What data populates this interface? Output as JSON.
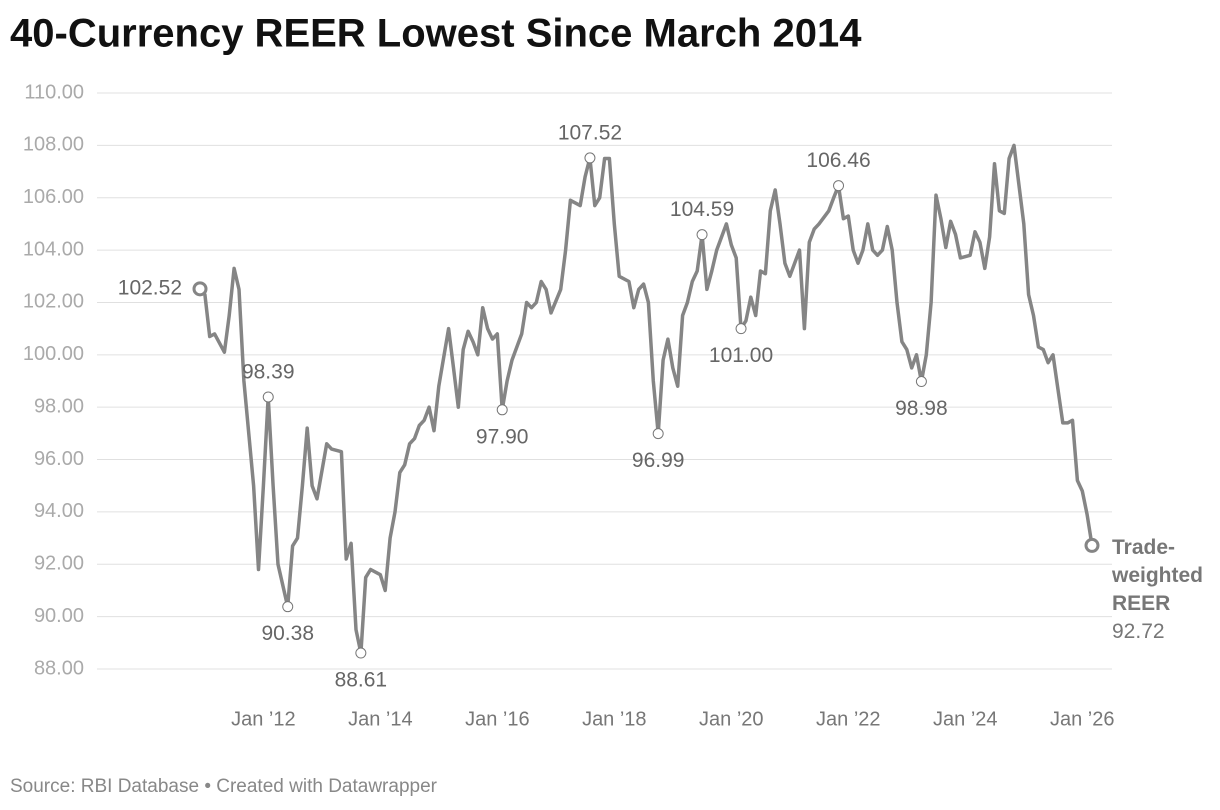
{
  "chart_data": {
    "type": "line",
    "title": "40-Currency REER Lowest Since March 2014",
    "source": "Source: RBI Database • Created with Datawrapper",
    "x": [
      "2010-12",
      "2011-01",
      "2011-02",
      "2011-03",
      "2011-05",
      "2011-06",
      "2011-07",
      "2011-08",
      "2011-09",
      "2011-11",
      "2011-12",
      "2012-01",
      "2012-02",
      "2012-03",
      "2012-04",
      "2012-06",
      "2012-07",
      "2012-08",
      "2012-09",
      "2012-10",
      "2012-11",
      "2012-12",
      "2013-02",
      "2013-03",
      "2013-05",
      "2013-06",
      "2013-07",
      "2013-08",
      "2013-09",
      "2013-10",
      "2013-11",
      "2014-01",
      "2014-02",
      "2014-03",
      "2014-04",
      "2014-05",
      "2014-06",
      "2014-07",
      "2014-08",
      "2014-09",
      "2014-10",
      "2014-11",
      "2014-12",
      "2015-01",
      "2015-03",
      "2015-04",
      "2015-05",
      "2015-06",
      "2015-07",
      "2015-08",
      "2015-09",
      "2015-10",
      "2015-11",
      "2015-12",
      "2016-01",
      "2016-02",
      "2016-03",
      "2016-04",
      "2016-06",
      "2016-07",
      "2016-08",
      "2016-09",
      "2016-10",
      "2016-11",
      "2016-12",
      "2017-02",
      "2017-03",
      "2017-04",
      "2017-06",
      "2017-07",
      "2017-08",
      "2017-09",
      "2017-10",
      "2017-11",
      "2017-12",
      "2018-01",
      "2018-02",
      "2018-04",
      "2018-05",
      "2018-06",
      "2018-07",
      "2018-08",
      "2018-09",
      "2018-10",
      "2018-11",
      "2018-12",
      "2019-01",
      "2019-02",
      "2019-03",
      "2019-04",
      "2019-05",
      "2019-06",
      "2019-07",
      "2019-08",
      "2019-09",
      "2019-10",
      "2019-12",
      "2020-01",
      "2020-02",
      "2020-03",
      "2020-04",
      "2020-05",
      "2020-06",
      "2020-07",
      "2020-08",
      "2020-09",
      "2020-10",
      "2020-11",
      "2020-12",
      "2021-01",
      "2021-03",
      "2021-04",
      "2021-05",
      "2021-06",
      "2021-07",
      "2021-09",
      "2021-10",
      "2021-11",
      "2021-12",
      "2022-01",
      "2022-02",
      "2022-03",
      "2022-04",
      "2022-05",
      "2022-06",
      "2022-07",
      "2022-08",
      "2022-09",
      "2022-10",
      "2022-11",
      "2022-12",
      "2023-01",
      "2023-02",
      "2023-03",
      "2023-04",
      "2023-05",
      "2023-06",
      "2023-07",
      "2023-08",
      "2023-09",
      "2023-10",
      "2023-11",
      "2023-12",
      "2024-02",
      "2024-03",
      "2024-04",
      "2024-05",
      "2024-06",
      "2024-07",
      "2024-08",
      "2024-09",
      "2024-10",
      "2024-11",
      "2024-12",
      "2025-01",
      "2025-02",
      "2025-03",
      "2025-04",
      "2025-05",
      "2025-06",
      "2025-07",
      "2025-08",
      "2025-09",
      "2025-10",
      "2025-11",
      "2025-12",
      "2026-01",
      "2026-02",
      "2026-03"
    ],
    "series": [
      {
        "name": "Trade-weighted REER",
        "color": "#858585",
        "values": [
          102.52,
          102.3,
          100.7,
          100.8,
          100.1,
          101.5,
          103.3,
          102.5,
          99,
          95,
          91.8,
          95,
          98.39,
          95,
          92,
          90.38,
          92.7,
          93,
          95,
          97.2,
          95,
          94.5,
          96.6,
          96.4,
          96.3,
          92.2,
          92.8,
          89.5,
          88.61,
          91.5,
          91.8,
          91.6,
          91,
          93,
          94,
          95.5,
          95.8,
          96.6,
          96.8,
          97.3,
          97.5,
          98,
          97.1,
          98.8,
          101,
          99.5,
          98,
          100.2,
          100.9,
          100.5,
          100,
          101.8,
          101,
          100.6,
          100.8,
          97.9,
          99,
          99.8,
          100.8,
          102,
          101.8,
          102,
          102.8,
          102.5,
          101.6,
          102.5,
          104,
          105.9,
          105.7,
          106.8,
          107.52,
          105.7,
          106,
          107.5,
          107.5,
          105,
          103,
          102.8,
          101.8,
          102.5,
          102.7,
          102,
          99,
          96.99,
          99.8,
          100.6,
          99.5,
          98.8,
          101.5,
          102,
          102.8,
          103.2,
          104.59,
          102.5,
          103.2,
          104,
          105,
          104.2,
          103.7,
          101,
          101.3,
          102.2,
          101.5,
          103.2,
          103.1,
          105.5,
          106.3,
          105,
          103.5,
          103,
          104,
          101,
          104.3,
          104.8,
          105,
          105.5,
          106,
          106.46,
          105.2,
          105.3,
          104,
          103.5,
          104,
          105,
          104,
          103.8,
          104,
          104.9,
          104,
          102,
          100.5,
          100.2,
          99.5,
          100,
          98.98,
          100,
          102,
          106.1,
          105.2,
          104.1,
          105.1,
          104.6,
          103.7,
          103.8,
          104.7,
          104.3,
          103.3,
          104.5,
          107.3,
          105.5,
          105.4,
          107.5,
          108,
          106.5,
          105,
          102.3,
          101.5,
          100.3,
          100.2,
          99.7,
          100,
          98.7,
          97.4,
          97.4,
          97.5,
          95.2,
          94.8,
          93.9,
          92.72
        ],
        "value_labels": [
          "102.52",
          null,
          null,
          null,
          null,
          null,
          null,
          null,
          null,
          null,
          null,
          null,
          "98.39",
          null,
          null,
          "90.38",
          null,
          null,
          null,
          null,
          null,
          null,
          null,
          null,
          null,
          null,
          null,
          null,
          "88.61",
          null,
          null,
          null,
          null,
          null,
          null,
          null,
          null,
          null,
          null,
          null,
          null,
          null,
          null,
          null,
          null,
          null,
          null,
          null,
          null,
          null,
          null,
          null,
          null,
          null,
          null,
          "97.90",
          null,
          null,
          null,
          null,
          null,
          null,
          null,
          null,
          null,
          null,
          null,
          null,
          null,
          null,
          "107.52",
          null,
          null,
          null,
          null,
          null,
          null,
          null,
          null,
          null,
          null,
          null,
          null,
          "96.99",
          null,
          null,
          null,
          null,
          null,
          null,
          null,
          null,
          "104.59",
          null,
          null,
          null,
          null,
          null,
          null,
          "101.00",
          null,
          null,
          null,
          null,
          null,
          null,
          null,
          null,
          null,
          null,
          null,
          null,
          null,
          null,
          null,
          null,
          null,
          "106.46",
          null,
          null,
          null,
          null,
          null,
          null,
          null,
          null,
          null,
          null,
          null,
          null,
          null,
          null,
          null,
          null,
          "98.98",
          null,
          null,
          null,
          null,
          null,
          null,
          null,
          null,
          null,
          null,
          null,
          null,
          null,
          null,
          null,
          null,
          null,
          null,
          null,
          null,
          null,
          null,
          null,
          null,
          null,
          null,
          null,
          null,
          null,
          null,
          null,
          null,
          null,
          "92.72"
        ]
      }
    ],
    "xlim": [
      "2010-12",
      "2026-03"
    ],
    "xticks": [
      {
        "value": "2012-01",
        "label": "Jan ’12"
      },
      {
        "value": "2014-01",
        "label": "Jan ’14"
      },
      {
        "value": "2016-01",
        "label": "Jan ’16"
      },
      {
        "value": "2018-01",
        "label": "Jan ’18"
      },
      {
        "value": "2020-01",
        "label": "Jan ’20"
      },
      {
        "value": "2022-01",
        "label": "Jan ’22"
      },
      {
        "value": "2024-01",
        "label": "Jan ’24"
      },
      {
        "value": "2026-01",
        "label": "Jan ’26"
      }
    ],
    "ylim": [
      88,
      110
    ],
    "yticks": [
      {
        "value": 88,
        "label": "88.00"
      },
      {
        "value": 90,
        "label": "90.00"
      },
      {
        "value": 92,
        "label": "92.00"
      },
      {
        "value": 94,
        "label": "94.00"
      },
      {
        "value": 96,
        "label": "96.00"
      },
      {
        "value": 98,
        "label": "98.00"
      },
      {
        "value": 100,
        "label": "100.00"
      },
      {
        "value": 102,
        "label": "102.00"
      },
      {
        "value": 104,
        "label": "104.00"
      },
      {
        "value": 106,
        "label": "106.00"
      },
      {
        "value": 108,
        "label": "108.00"
      },
      {
        "value": 110,
        "label": "110.00"
      }
    ],
    "grid": true
  }
}
